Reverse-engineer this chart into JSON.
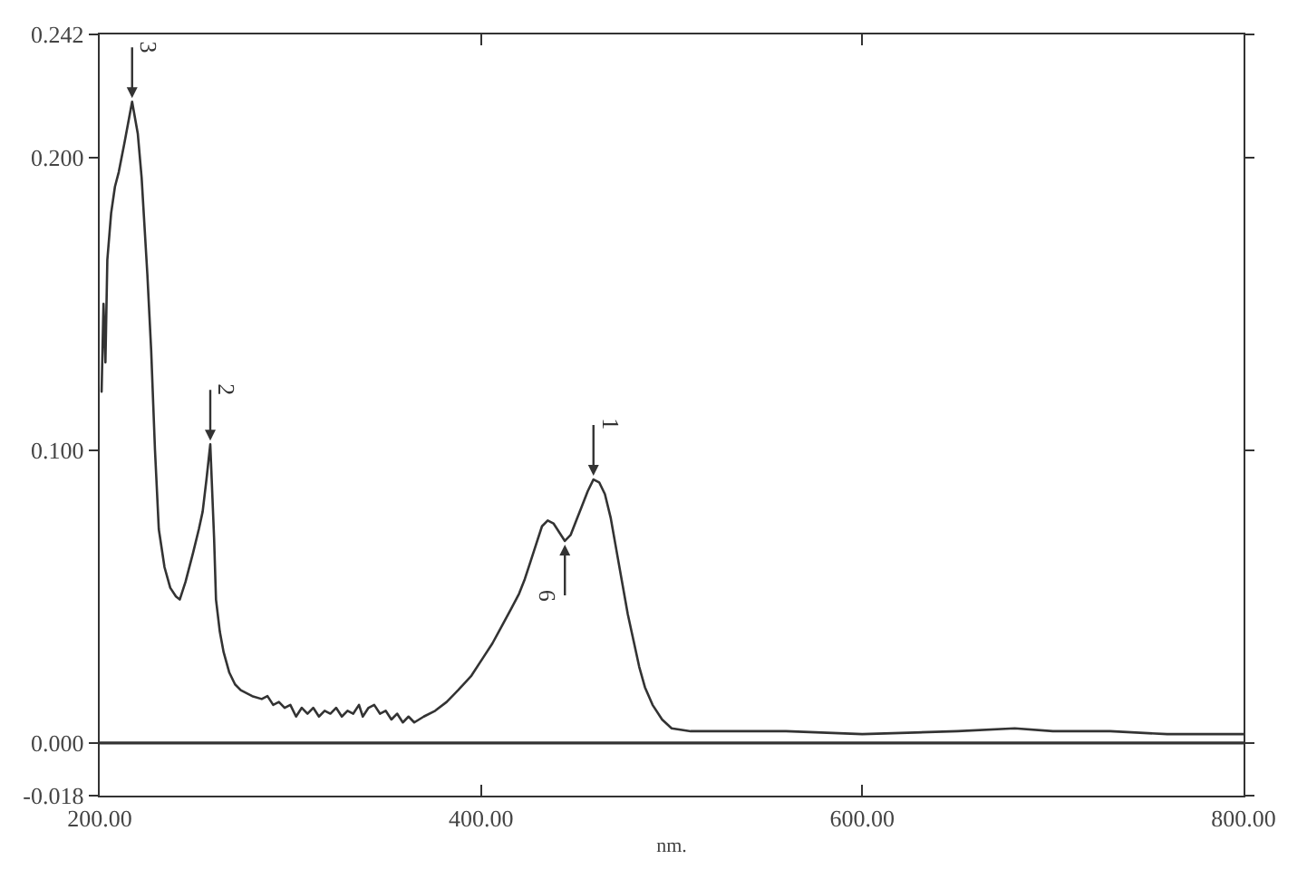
{
  "chart_data": {
    "type": "line",
    "xlabel": "nm.",
    "x": [
      201,
      202,
      203,
      204,
      206,
      208,
      210,
      213,
      217,
      220,
      222,
      225,
      227,
      229,
      231,
      234,
      237,
      240,
      242,
      245,
      249,
      252,
      254,
      256,
      258,
      260,
      261,
      263,
      265,
      268,
      271,
      274,
      280,
      285,
      288,
      291,
      294,
      297,
      300,
      303,
      306,
      309,
      312,
      315,
      318,
      321,
      324,
      327,
      330,
      333,
      336,
      338,
      341,
      344,
      347,
      350,
      353,
      356,
      359,
      362,
      365,
      370,
      376,
      382,
      388,
      395,
      401,
      406,
      411,
      416,
      420,
      423,
      426,
      429,
      432,
      435,
      438,
      441,
      444,
      447,
      450,
      453,
      456,
      459,
      462,
      465,
      468,
      471,
      474,
      477,
      480,
      483,
      486,
      490,
      495,
      500,
      510,
      530,
      560,
      600,
      650,
      680,
      700,
      730,
      760,
      800
    ],
    "series": [
      {
        "color": "#333333",
        "values": [
          0.12,
          0.15,
          0.13,
          0.165,
          0.181,
          0.19,
          0.195,
          0.205,
          0.219,
          0.208,
          0.193,
          0.16,
          0.134,
          0.1,
          0.073,
          0.06,
          0.053,
          0.05,
          0.049,
          0.055,
          0.065,
          0.073,
          0.079,
          0.09,
          0.102,
          0.07,
          0.049,
          0.038,
          0.031,
          0.024,
          0.02,
          0.018,
          0.016,
          0.015,
          0.016,
          0.013,
          0.014,
          0.012,
          0.013,
          0.009,
          0.012,
          0.01,
          0.012,
          0.009,
          0.011,
          0.01,
          0.012,
          0.009,
          0.011,
          0.01,
          0.013,
          0.009,
          0.012,
          0.013,
          0.01,
          0.011,
          0.008,
          0.01,
          0.007,
          0.009,
          0.007,
          0.009,
          0.011,
          0.014,
          0.018,
          0.023,
          0.029,
          0.034,
          0.04,
          0.046,
          0.051,
          0.056,
          0.062,
          0.068,
          0.074,
          0.076,
          0.075,
          0.072,
          0.069,
          0.071,
          0.076,
          0.081,
          0.086,
          0.09,
          0.089,
          0.085,
          0.077,
          0.066,
          0.055,
          0.044,
          0.035,
          0.026,
          0.019,
          0.013,
          0.008,
          0.005,
          0.004,
          0.004,
          0.004,
          0.003,
          0.004,
          0.005,
          0.004,
          0.004,
          0.003,
          0.003
        ]
      }
    ],
    "xlim": [
      200,
      800
    ],
    "ylim": [
      -0.018,
      0.242
    ],
    "xticks": [
      {
        "value": 200,
        "label": "200.00"
      },
      {
        "value": 400,
        "label": "400.00"
      },
      {
        "value": 600,
        "label": "600.00"
      },
      {
        "value": 800,
        "label": "800.00"
      }
    ],
    "yticks": [
      {
        "value": -0.018,
        "label": "-0.018"
      },
      {
        "value": 0,
        "label": "0.000"
      },
      {
        "value": 0.1,
        "label": "0.100"
      },
      {
        "value": 0.2,
        "label": "0.200"
      },
      {
        "value": 0.242,
        "label": "0.242"
      }
    ],
    "annotations": [
      {
        "text": "3",
        "x": 217,
        "y": 0.219
      },
      {
        "text": "2",
        "x": 258,
        "y": 0.102
      },
      {
        "text": "6",
        "x": 444,
        "y": 0.069
      },
      {
        "text": "1",
        "x": 459,
        "y": 0.09
      }
    ],
    "ref_lines": [
      {
        "axis": "y",
        "value": 0,
        "color": "#333333",
        "line_style": "solid"
      }
    ],
    "grid": false
  }
}
